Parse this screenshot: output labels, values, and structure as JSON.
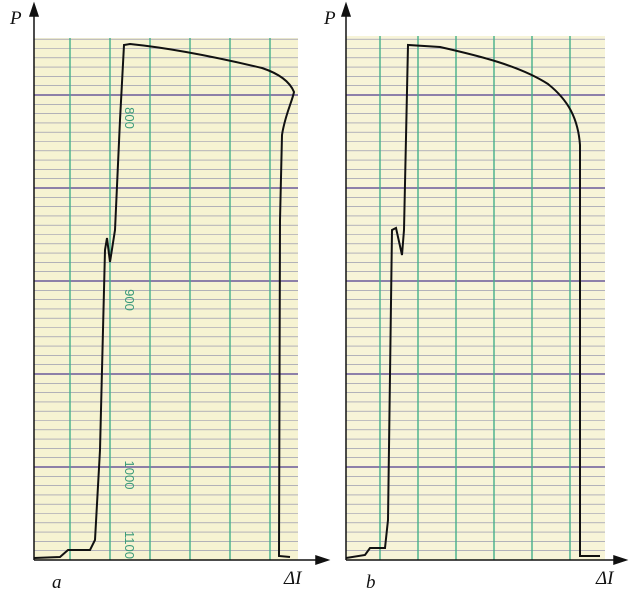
{
  "panels": [
    {
      "y_axis_label": "P",
      "x_axis_label": "ΔI",
      "panel_label": "a",
      "scale_labels": [
        "800",
        "900",
        "1000",
        "1100"
      ]
    },
    {
      "y_axis_label": "P",
      "x_axis_label": "ΔI",
      "panel_label": "b"
    }
  ]
}
